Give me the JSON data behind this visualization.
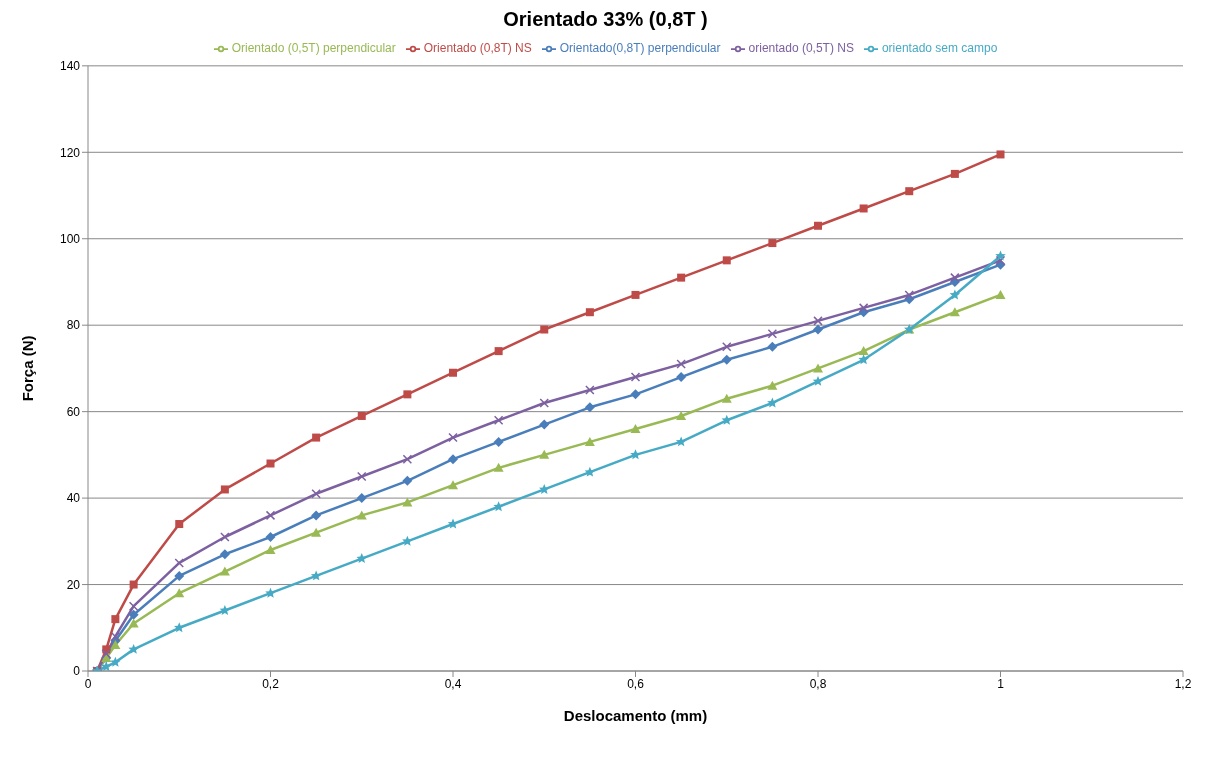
{
  "chart_data": {
    "type": "line",
    "title": "Orientado 33% (0,8T )",
    "xlabel": "Deslocamento (mm)",
    "ylabel": "Força (N)",
    "x": [
      0.01,
      0.02,
      0.03,
      0.05,
      0.1,
      0.15,
      0.2,
      0.25,
      0.3,
      0.35,
      0.4,
      0.45,
      0.5,
      0.55,
      0.6,
      0.65,
      0.7,
      0.75,
      0.8,
      0.85,
      0.9,
      0.95,
      1.0
    ],
    "series": [
      {
        "name": "Orientado(0,8T) perpendicular",
        "color": "#4a7ebb",
        "marker": "diamond",
        "values": [
          0,
          3,
          7,
          13,
          22,
          27,
          31,
          36,
          40,
          44,
          49,
          53,
          57,
          61,
          64,
          68,
          72,
          75,
          79,
          83,
          86,
          90,
          94
        ]
      },
      {
        "name": "Orientado (0,8T) NS",
        "color": "#be4b48",
        "marker": "square",
        "values": [
          0,
          5,
          12,
          20,
          34,
          42,
          48,
          54,
          59,
          64,
          69,
          74,
          79,
          83,
          87,
          91,
          95,
          99,
          103,
          107,
          111,
          115,
          119.5
        ]
      },
      {
        "name": "Orientado (0,5T) perpendicular",
        "color": "#98b954",
        "marker": "triangle",
        "values": [
          0,
          3,
          6,
          11,
          18,
          23,
          28,
          32,
          36,
          39,
          43,
          47,
          50,
          53,
          56,
          59,
          63,
          66,
          70,
          74,
          79,
          83,
          87
        ]
      },
      {
        "name": "orientado (0,5T) NS",
        "color": "#7d60a0",
        "marker": "cross",
        "values": [
          0,
          4,
          8,
          15,
          25,
          31,
          36,
          41,
          45,
          49,
          54,
          58,
          62,
          65,
          68,
          71,
          75,
          78,
          81,
          84,
          87,
          91,
          95
        ]
      },
      {
        "name": "orientado sem campo",
        "color": "#46aac5",
        "marker": "star",
        "values": [
          0,
          1,
          2,
          5,
          10,
          14,
          18,
          22,
          26,
          30,
          34,
          38,
          42,
          46,
          50,
          53,
          58,
          62,
          67,
          72,
          79,
          87,
          96
        ]
      }
    ],
    "xlim": [
      0,
      1.2
    ],
    "xticks": [
      0,
      {
        "value": 0.2,
        "label": "0,2"
      },
      {
        "value": 0.4,
        "label": "0,4"
      },
      {
        "value": 0.6,
        "label": "0,6"
      },
      {
        "value": 0.8,
        "label": "0,8"
      },
      1,
      {
        "value": 1.2,
        "label": "1,2"
      }
    ],
    "ylim": [
      0,
      140
    ],
    "yticks": [
      0,
      20,
      40,
      60,
      80,
      100,
      120,
      140
    ],
    "grid": "y",
    "legend": "top"
  }
}
